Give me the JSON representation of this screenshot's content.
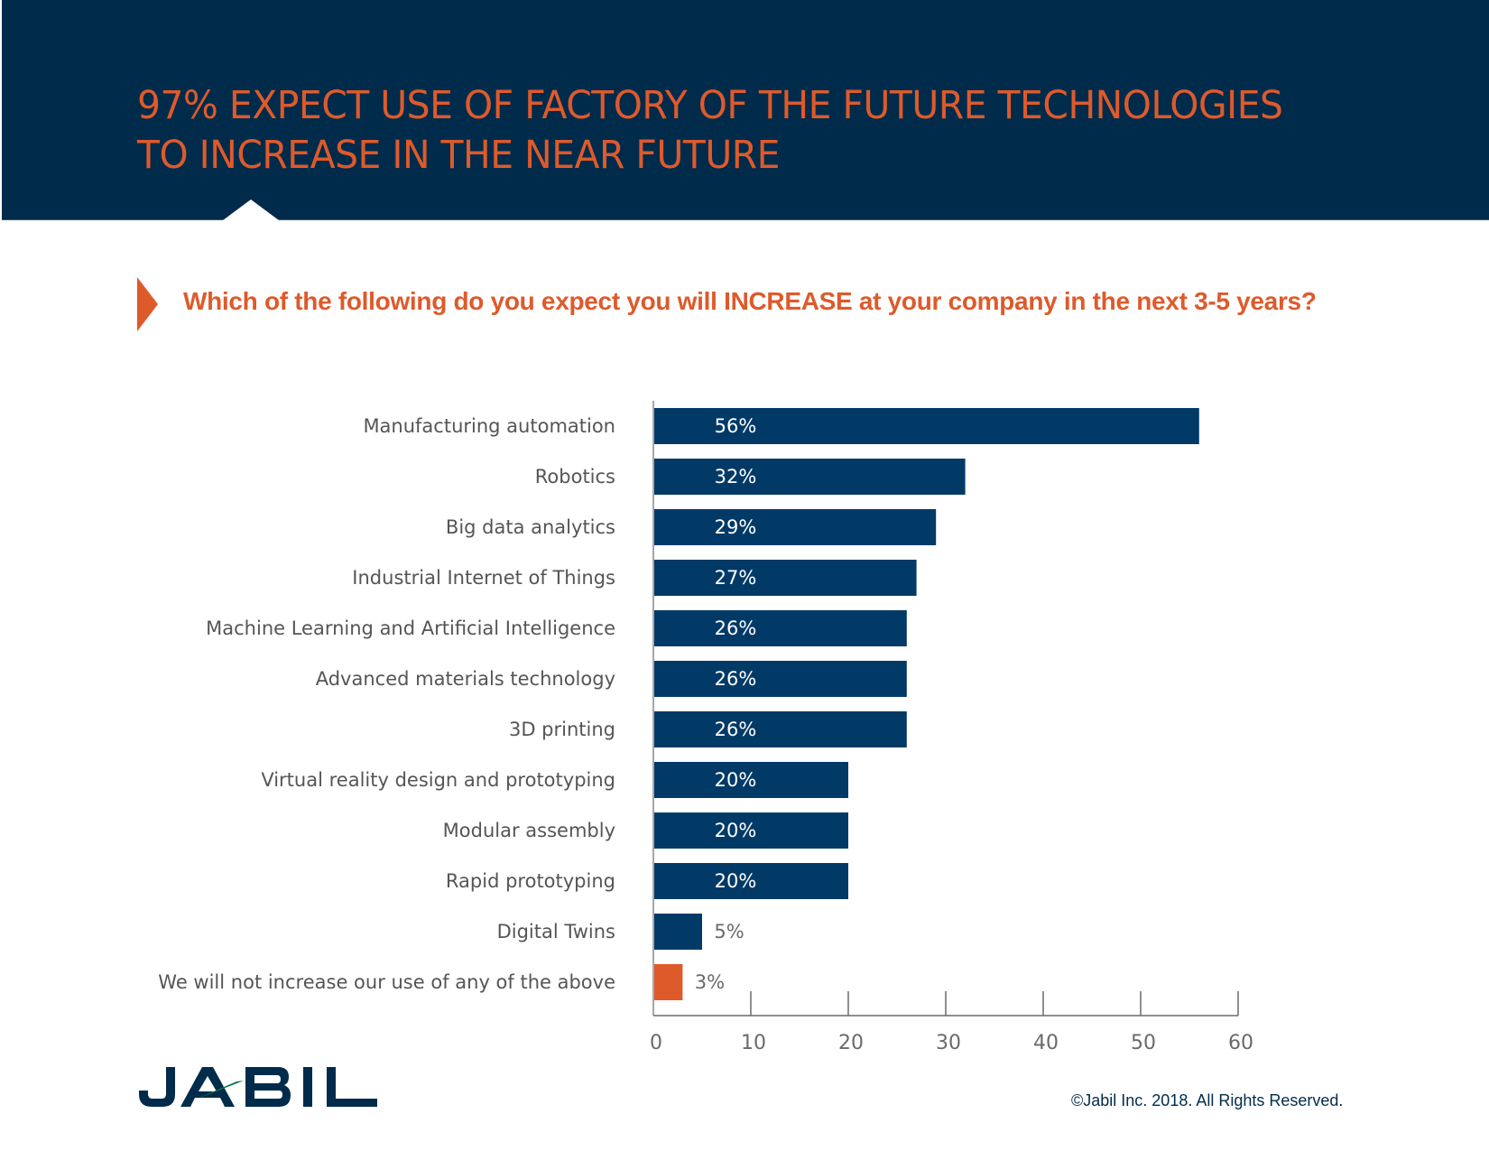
{
  "header": {
    "title_line1": "97% EXPECT USE OF FACTORY OF THE FUTURE TECHNOLOGIES",
    "title_line2": "TO INCREASE IN THE NEAR FUTURE"
  },
  "question": "Which of the following do you expect you will INCREASE at your company in the next 3-5 years?",
  "colors": {
    "header_bg": "#012b4b",
    "accent_orange": "#de5a2b",
    "bar_blue": "#023a67",
    "bar_highlight": "#de5a2b",
    "logo_green": "#08794a"
  },
  "chart_data": {
    "type": "bar",
    "orientation": "horizontal",
    "title": "Which of the following do you expect you will INCREASE at your company in the next 3-5 years?",
    "xlabel": "",
    "ylabel": "",
    "xlim": [
      0,
      60
    ],
    "xticks": [
      0,
      10,
      20,
      30,
      40,
      50,
      60
    ],
    "grid": false,
    "categories": [
      "Manufacturing automation",
      "Robotics",
      "Big data analytics",
      "Industrial Internet of Things",
      "Machine Learning and Artificial Intelligence",
      "Advanced materials technology",
      "3D printing",
      "Virtual reality design and prototyping",
      "Modular assembly",
      "Rapid prototyping",
      "Digital Twins",
      "We will not increase our use of any of the above"
    ],
    "values": [
      56,
      32,
      29,
      27,
      26,
      26,
      26,
      20,
      20,
      20,
      5,
      3
    ],
    "value_labels": [
      "56%",
      "32%",
      "29%",
      "27%",
      "26%",
      "26%",
      "26%",
      "20%",
      "20%",
      "20%",
      "5%",
      "3%"
    ],
    "highlighted_category": "We will not increase our use of any of the above",
    "unit": "%"
  },
  "footer": {
    "logo_text": "JABIL",
    "copyright": "©Jabil Inc. 2018. All Rights Reserved."
  }
}
